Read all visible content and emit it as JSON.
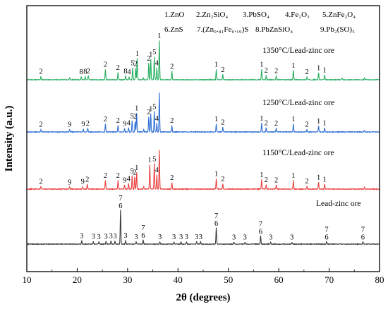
{
  "chart_data": {
    "type": "line",
    "xlabel": "2θ (degrees)",
    "ylabel": "Intensity (a.u.)",
    "xlim": [
      10,
      80
    ],
    "xticks": [
      10,
      20,
      30,
      40,
      50,
      60,
      70,
      80
    ],
    "grid": false,
    "phase_legend": [
      [
        "1.ZnO",
        "2.Zn₂SiO₄",
        "3.PbSO₄",
        "4.Fe₂O₃",
        "5.ZnFe₂O₄"
      ],
      [
        "6.ZnS",
        "7.(Zn₀.₈₁Fe₀.₁₉)S",
        "8.PbZnSiO₄",
        "9.Pb₂(SO)₅"
      ]
    ],
    "series": [
      {
        "name": "1350°C/Lead-zinc ore",
        "color": "#27ae60",
        "peaks": [
          {
            "x": 12.8,
            "h": 0.08,
            "label": "2"
          },
          {
            "x": 18.5,
            "h": 0.05,
            "label": ""
          },
          {
            "x": 20.8,
            "h": 0.07,
            "label": "8"
          },
          {
            "x": 21.6,
            "h": 0.08,
            "label": "8"
          },
          {
            "x": 22.2,
            "h": 0.09,
            "label": "2"
          },
          {
            "x": 25.6,
            "h": 0.26,
            "label": "2"
          },
          {
            "x": 28.1,
            "h": 0.18,
            "label": "2"
          },
          {
            "x": 29.6,
            "h": 0.09,
            "label": "8"
          },
          {
            "x": 30.3,
            "h": 0.07,
            "label": "4"
          },
          {
            "x": 31.0,
            "h": 0.3,
            "label": "5"
          },
          {
            "x": 31.6,
            "h": 0.28,
            "label": "2"
          },
          {
            "x": 31.9,
            "h": 0.55,
            "label": "1"
          },
          {
            "x": 33.1,
            "h": 0.05,
            "label": ""
          },
          {
            "x": 34.2,
            "h": 0.42,
            "label": "2"
          },
          {
            "x": 34.6,
            "h": 0.52,
            "label": "1"
          },
          {
            "x": 35.3,
            "h": 0.58,
            "label": "5"
          },
          {
            "x": 35.8,
            "h": 0.3,
            "label": "4"
          },
          {
            "x": 36.3,
            "h": 1.0,
            "label": "1"
          },
          {
            "x": 38.8,
            "h": 0.21,
            "label": "2"
          },
          {
            "x": 47.6,
            "h": 0.26,
            "label": "1"
          },
          {
            "x": 48.9,
            "h": 0.13,
            "label": "2"
          },
          {
            "x": 56.6,
            "h": 0.26,
            "label": "1"
          },
          {
            "x": 57.5,
            "h": 0.11,
            "label": "2"
          },
          {
            "x": 59.5,
            "h": 0.1,
            "label": "2"
          },
          {
            "x": 62.9,
            "h": 0.24,
            "label": "1"
          },
          {
            "x": 65.6,
            "h": 0.07,
            "label": "2"
          },
          {
            "x": 67.9,
            "h": 0.17,
            "label": "1"
          },
          {
            "x": 69.1,
            "h": 0.12,
            "label": "1"
          },
          {
            "x": 72.6,
            "h": 0.04,
            "label": ""
          },
          {
            "x": 77.0,
            "h": 0.05,
            "label": ""
          }
        ]
      },
      {
        "name": "1250°C/Lead-zinc ore",
        "color": "#2f6fd6",
        "peaks": [
          {
            "x": 12.8,
            "h": 0.06,
            "label": "2"
          },
          {
            "x": 18.5,
            "h": 0.06,
            "label": "9"
          },
          {
            "x": 21.2,
            "h": 0.07,
            "label": "9"
          },
          {
            "x": 22.1,
            "h": 0.09,
            "label": "2"
          },
          {
            "x": 25.6,
            "h": 0.2,
            "label": "2"
          },
          {
            "x": 28.1,
            "h": 0.16,
            "label": "2"
          },
          {
            "x": 29.4,
            "h": 0.08,
            "label": "9"
          },
          {
            "x": 30.2,
            "h": 0.1,
            "label": "4"
          },
          {
            "x": 30.9,
            "h": 0.28,
            "label": "5"
          },
          {
            "x": 31.5,
            "h": 0.26,
            "label": "2"
          },
          {
            "x": 31.8,
            "h": 0.48,
            "label": "1"
          },
          {
            "x": 33.2,
            "h": 0.06,
            "label": ""
          },
          {
            "x": 34.2,
            "h": 0.38,
            "label": "2"
          },
          {
            "x": 34.6,
            "h": 0.46,
            "label": "1"
          },
          {
            "x": 35.3,
            "h": 0.52,
            "label": "5"
          },
          {
            "x": 35.8,
            "h": 0.22,
            "label": "4"
          },
          {
            "x": 36.3,
            "h": 1.0,
            "label": ""
          },
          {
            "x": 38.8,
            "h": 0.16,
            "label": "2"
          },
          {
            "x": 47.6,
            "h": 0.2,
            "label": "1"
          },
          {
            "x": 48.9,
            "h": 0.12,
            "label": "2"
          },
          {
            "x": 56.6,
            "h": 0.22,
            "label": "1"
          },
          {
            "x": 57.5,
            "h": 0.1,
            "label": "2"
          },
          {
            "x": 59.5,
            "h": 0.09,
            "label": "2"
          },
          {
            "x": 62.9,
            "h": 0.2,
            "label": "1"
          },
          {
            "x": 65.6,
            "h": 0.06,
            "label": "2"
          },
          {
            "x": 67.9,
            "h": 0.15,
            "label": "1"
          },
          {
            "x": 69.1,
            "h": 0.1,
            "label": "1"
          },
          {
            "x": 77.0,
            "h": 0.04,
            "label": ""
          }
        ]
      },
      {
        "name": "1150°C/Lead-zinc ore",
        "color": "#e8413f",
        "peaks": [
          {
            "x": 12.8,
            "h": 0.06,
            "label": "2"
          },
          {
            "x": 18.5,
            "h": 0.05,
            "label": "9"
          },
          {
            "x": 21.1,
            "h": 0.06,
            "label": "9"
          },
          {
            "x": 22.0,
            "h": 0.12,
            "label": "2"
          },
          {
            "x": 25.6,
            "h": 0.22,
            "label": "2"
          },
          {
            "x": 28.1,
            "h": 0.22,
            "label": "2"
          },
          {
            "x": 29.4,
            "h": 0.1,
            "label": "9"
          },
          {
            "x": 30.2,
            "h": 0.14,
            "label": "4"
          },
          {
            "x": 30.9,
            "h": 0.34,
            "label": "5"
          },
          {
            "x": 31.4,
            "h": 0.3,
            "label": "2"
          },
          {
            "x": 31.8,
            "h": 0.42,
            "label": "1"
          },
          {
            "x": 33.2,
            "h": 0.07,
            "label": ""
          },
          {
            "x": 34.4,
            "h": 0.62,
            "label": "1"
          },
          {
            "x": 35.3,
            "h": 0.65,
            "label": "5"
          },
          {
            "x": 35.8,
            "h": 0.36,
            "label": "4"
          },
          {
            "x": 36.3,
            "h": 1.0,
            "label": ""
          },
          {
            "x": 38.8,
            "h": 0.16,
            "label": "2"
          },
          {
            "x": 47.6,
            "h": 0.26,
            "label": "1"
          },
          {
            "x": 48.9,
            "h": 0.13,
            "label": "2"
          },
          {
            "x": 56.6,
            "h": 0.24,
            "label": "1"
          },
          {
            "x": 57.5,
            "h": 0.11,
            "label": "2"
          },
          {
            "x": 59.5,
            "h": 0.1,
            "label": "2"
          },
          {
            "x": 62.9,
            "h": 0.22,
            "label": "1"
          },
          {
            "x": 65.6,
            "h": 0.07,
            "label": "2"
          },
          {
            "x": 67.9,
            "h": 0.17,
            "label": "1"
          },
          {
            "x": 69.1,
            "h": 0.12,
            "label": "1"
          },
          {
            "x": 77.0,
            "h": 0.04,
            "label": ""
          }
        ]
      },
      {
        "name": "Lead-zinc ore",
        "color": "#3a3a3a",
        "peaks": [
          {
            "x": 20.9,
            "h": 0.09,
            "label": "3"
          },
          {
            "x": 23.2,
            "h": 0.07,
            "label": "3"
          },
          {
            "x": 24.3,
            "h": 0.06,
            "label": "3"
          },
          {
            "x": 25.7,
            "h": 0.07,
            "label": "3"
          },
          {
            "x": 26.7,
            "h": 0.09,
            "label": "3"
          },
          {
            "x": 27.5,
            "h": 0.08,
            "label": "3"
          },
          {
            "x": 28.6,
            "h": 1.0,
            "label": "7\n6"
          },
          {
            "x": 29.6,
            "h": 0.1,
            "label": "3"
          },
          {
            "x": 31.7,
            "h": 0.06,
            "label": "3"
          },
          {
            "x": 33.1,
            "h": 0.12,
            "label": "7\n6"
          },
          {
            "x": 36.4,
            "h": 0.06,
            "label": "3"
          },
          {
            "x": 39.2,
            "h": 0.06,
            "label": "3"
          },
          {
            "x": 40.6,
            "h": 0.06,
            "label": "3"
          },
          {
            "x": 41.7,
            "h": 0.06,
            "label": "3"
          },
          {
            "x": 43.7,
            "h": 0.06,
            "label": "3"
          },
          {
            "x": 44.5,
            "h": 0.06,
            "label": "3"
          },
          {
            "x": 47.6,
            "h": 0.48,
            "label": "7\n6"
          },
          {
            "x": 51.1,
            "h": 0.05,
            "label": "3"
          },
          {
            "x": 53.3,
            "h": 0.05,
            "label": "3"
          },
          {
            "x": 56.4,
            "h": 0.24,
            "label": "7\n6"
          },
          {
            "x": 58.4,
            "h": 0.05,
            "label": "3"
          },
          {
            "x": 62.6,
            "h": 0.05,
            "label": "3"
          },
          {
            "x": 69.5,
            "h": 0.07,
            "label": "7\n6"
          },
          {
            "x": 76.7,
            "h": 0.07,
            "label": "7\n6"
          }
        ]
      }
    ]
  }
}
